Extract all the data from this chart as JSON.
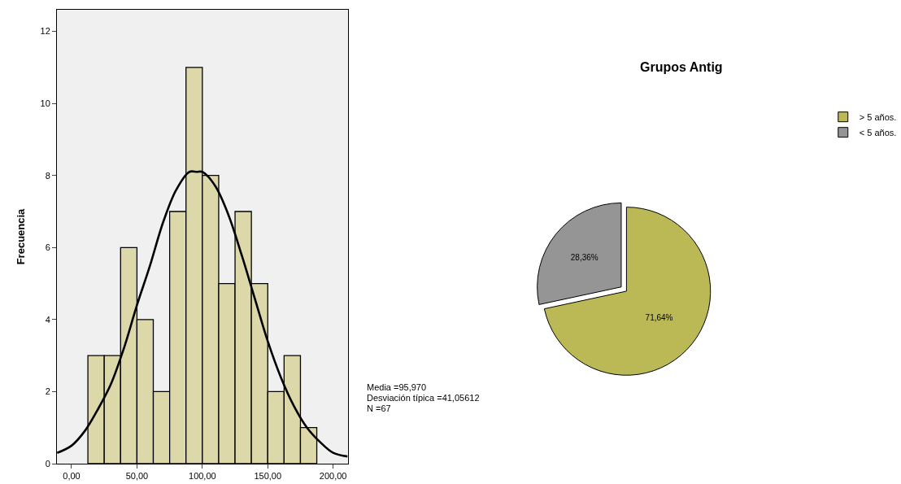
{
  "chart_data": [
    {
      "type": "histogram",
      "ylabel": "Frecuencia",
      "color": "#dcd8aa",
      "bins": [
        12.5,
        25,
        37.5,
        50,
        62.5,
        75,
        87.5,
        100,
        112.5,
        125,
        137.5,
        150,
        162.5,
        175,
        187.5
      ],
      "values": [
        3,
        3,
        6,
        4,
        2,
        7,
        11,
        8,
        5,
        7,
        5,
        2,
        3,
        1
      ],
      "series": [
        {
          "type": "line",
          "color": "#000000",
          "x": [
            -11,
            0,
            10,
            20,
            30,
            40,
            50,
            60,
            70,
            80,
            90,
            96,
            100,
            110,
            120,
            130,
            140,
            150,
            160,
            170,
            180,
            190,
            200,
            211
          ],
          "values": [
            0.3,
            0.5,
            0.9,
            1.5,
            2.2,
            3.2,
            4.4,
            5.5,
            6.7,
            7.6,
            8.1,
            8.1,
            8.1,
            7.7,
            6.9,
            5.8,
            4.6,
            3.4,
            2.4,
            1.6,
            1.0,
            0.6,
            0.3,
            0.2
          ]
        }
      ],
      "xlim": [
        -11.2,
        211.2
      ],
      "ylim": [
        0,
        12.6
      ],
      "xticks": [
        {
          "value": 0,
          "label": "0,00"
        },
        {
          "value": 50,
          "label": "50,00"
        },
        {
          "value": 100,
          "label": "100,00"
        },
        {
          "value": 150,
          "label": "150,00"
        },
        {
          "value": 200,
          "label": "200,00"
        }
      ],
      "yticks": [
        0,
        2,
        4,
        6,
        8,
        10,
        12
      ],
      "grid": false,
      "annotations": [
        "Media =95,970",
        "Desviación típica =41,05612",
        "N =67"
      ]
    },
    {
      "type": "pie",
      "title": "Grupos Antig",
      "categories": [
        "> 5 años.",
        "< 5 años."
      ],
      "values": [
        71.64,
        28.36
      ],
      "colors": [
        "#bbb856",
        "#959595"
      ],
      "value_labels": [
        "71,64%",
        "28,36%"
      ],
      "legend": "top right"
    }
  ]
}
